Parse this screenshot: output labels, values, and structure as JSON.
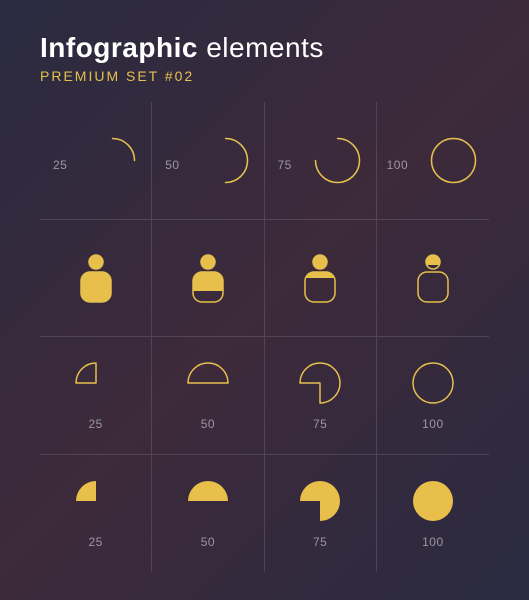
{
  "title_bold": "Infographic",
  "title_light": "elements",
  "subtitle": "PREMIUM SET #02",
  "colors": {
    "accent": "#e6c04f",
    "accent_fill": "#e8bf4a",
    "text_muted": "#9a96a6",
    "text_white": "#ffffff",
    "grid_line": "rgba(120,120,140,0.35)",
    "bg_start": "#2a2a40",
    "bg_mid": "#3d2a3a"
  },
  "rows": [
    {
      "type": "arc_progress",
      "stroke_width": 1.5,
      "radius": 22,
      "items": [
        {
          "value": 25,
          "label": "25"
        },
        {
          "value": 50,
          "label": "50"
        },
        {
          "value": 75,
          "label": "75"
        },
        {
          "value": 100,
          "label": "100"
        }
      ]
    },
    {
      "type": "person_fill",
      "width": 36,
      "height": 46,
      "items": [
        {
          "fill_pct": 100
        },
        {
          "fill_pct": 75
        },
        {
          "fill_pct": 50
        },
        {
          "fill_pct": 25
        }
      ]
    },
    {
      "type": "pie_outline",
      "radius": 20,
      "stroke_width": 1.5,
      "items": [
        {
          "value": 25,
          "label": "25"
        },
        {
          "value": 50,
          "label": "50"
        },
        {
          "value": 75,
          "label": "75"
        },
        {
          "value": 100,
          "label": "100"
        }
      ]
    },
    {
      "type": "pie_fill",
      "radius": 20,
      "items": [
        {
          "value": 25,
          "label": "25"
        },
        {
          "value": 50,
          "label": "50"
        },
        {
          "value": 75,
          "label": "75"
        },
        {
          "value": 100,
          "label": "100"
        }
      ]
    }
  ]
}
